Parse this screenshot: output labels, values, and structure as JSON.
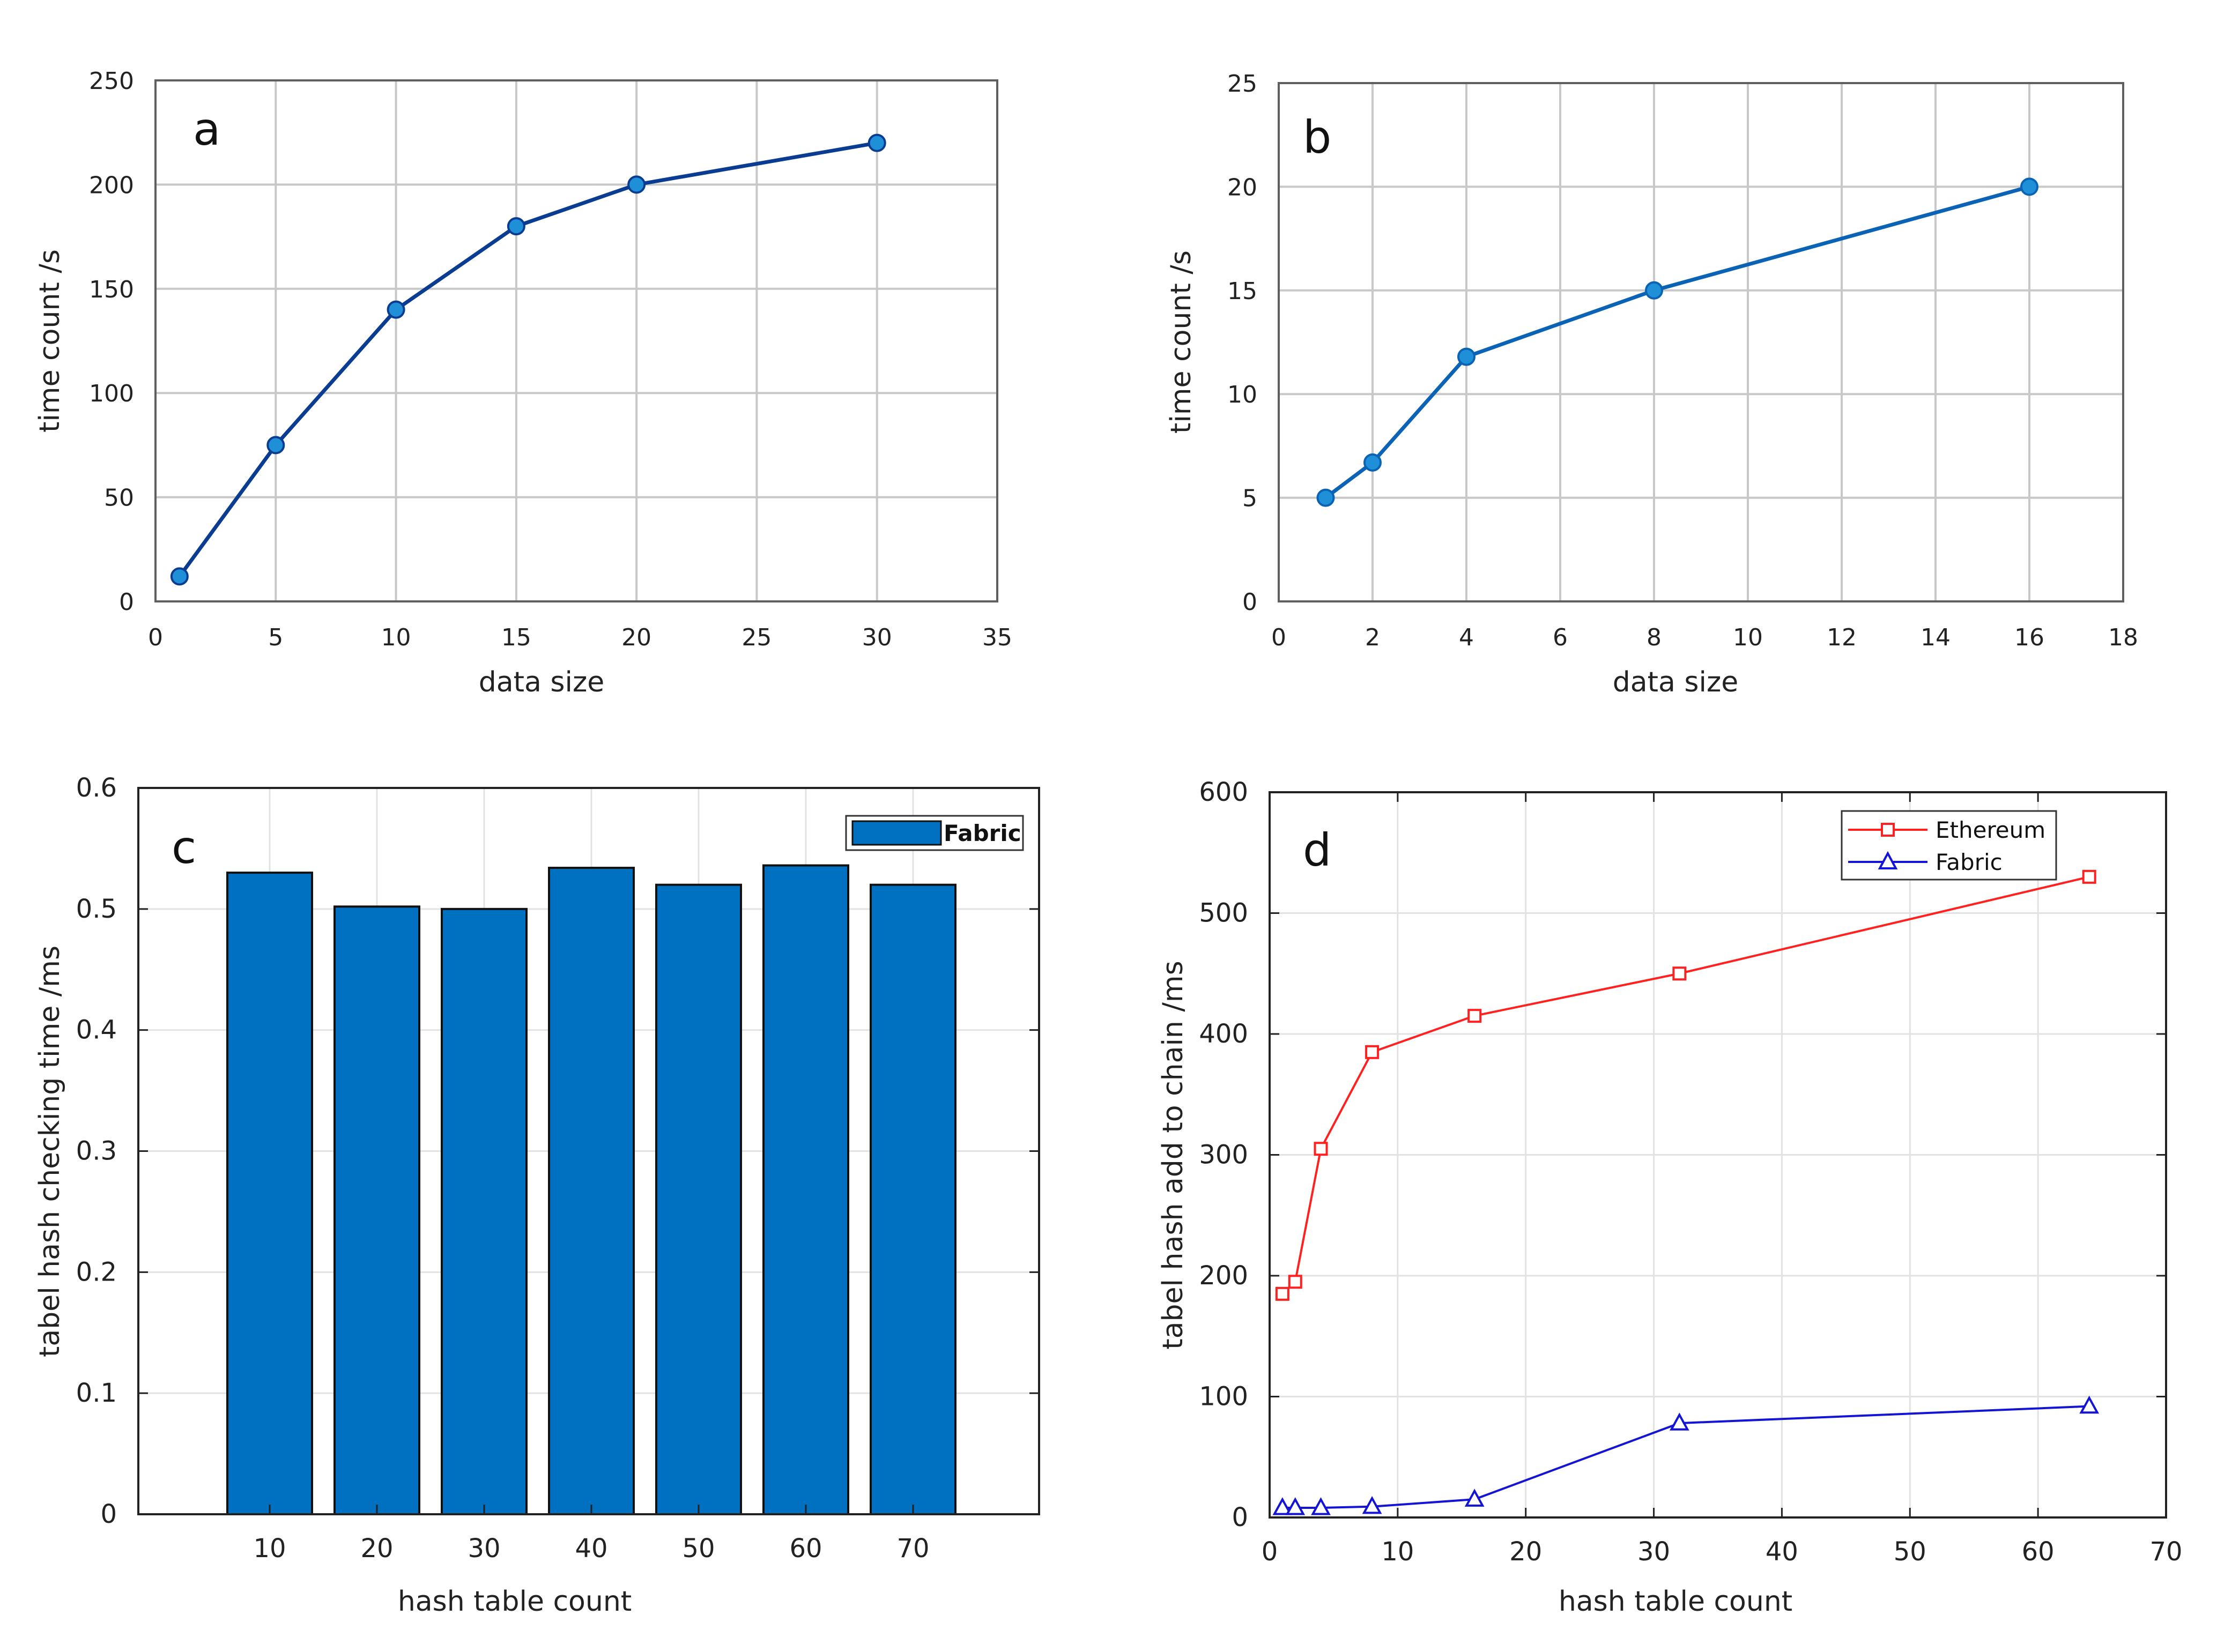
{
  "chart_data": [
    {
      "type": "line",
      "panel_label": "a",
      "xlabel": "data size",
      "ylabel": "time count /s",
      "xlim": [
        0,
        35
      ],
      "ylim": [
        0,
        250
      ],
      "xticks": [
        "0",
        "5",
        "10",
        "15",
        "20",
        "25",
        "30",
        "35"
      ],
      "yticks": [
        "0",
        "50",
        "100",
        "150",
        "200",
        "250"
      ],
      "grid": true,
      "series": [
        {
          "name": "",
          "color": "#0a3d91",
          "marker_color": "#1f8fd8",
          "marker": "circle",
          "x": [
            1,
            5,
            10,
            15,
            20,
            30
          ],
          "values": [
            12,
            75,
            140,
            180,
            200,
            220
          ]
        }
      ]
    },
    {
      "type": "line",
      "panel_label": "b",
      "xlabel": "data size",
      "ylabel": "time count /s",
      "xlim": [
        0,
        18
      ],
      "ylim": [
        0,
        25
      ],
      "xticks": [
        "0",
        "2",
        "4",
        "6",
        "8",
        "10",
        "12",
        "14",
        "16",
        "18"
      ],
      "yticks": [
        "0",
        "5",
        "10",
        "15",
        "20",
        "25"
      ],
      "grid": true,
      "series": [
        {
          "name": "",
          "color": "#0a63b4",
          "marker_color": "#1f8fd8",
          "marker": "circle",
          "x": [
            1,
            2,
            4,
            8,
            16
          ],
          "values": [
            5,
            6.7,
            11.8,
            15,
            20
          ]
        }
      ]
    },
    {
      "type": "bar",
      "panel_label": "c",
      "xlabel": "hash table count",
      "ylabel": "tabel hash checking time /ms",
      "ylim": [
        0,
        0.6
      ],
      "categories": [
        "10",
        "20",
        "30",
        "40",
        "50",
        "60",
        "70"
      ],
      "yticks": [
        "0",
        "0.1",
        "0.2",
        "0.3",
        "0.4",
        "0.5",
        "0.6"
      ],
      "legend": "top-right",
      "series": [
        {
          "name": "Fabric",
          "color": "#0070c0",
          "values": [
            0.53,
            0.502,
            0.5,
            0.534,
            0.52,
            0.536,
            0.52
          ]
        }
      ]
    },
    {
      "type": "line",
      "panel_label": "d",
      "xlabel": "hash table count",
      "ylabel": "tabel hash add to chain /ms",
      "xlim": [
        0,
        70
      ],
      "ylim": [
        0,
        600
      ],
      "xticks": [
        "0",
        "10",
        "20",
        "30",
        "40",
        "50",
        "60",
        "70"
      ],
      "yticks": [
        "0",
        "100",
        "200",
        "300",
        "400",
        "500",
        "600"
      ],
      "grid": true,
      "legend": "top-right",
      "series": [
        {
          "name": "Ethereum",
          "color": "#ff2020",
          "marker": "square",
          "x": [
            1,
            2,
            4,
            8,
            16,
            32,
            64
          ],
          "values": [
            185,
            195,
            305,
            385,
            415,
            450,
            530
          ]
        },
        {
          "name": "Fabric",
          "color": "#1414d4",
          "marker": "triangle",
          "x": [
            1,
            2,
            4,
            8,
            16,
            32,
            64
          ],
          "values": [
            8,
            8,
            8,
            9,
            15,
            78,
            92
          ]
        }
      ]
    }
  ]
}
